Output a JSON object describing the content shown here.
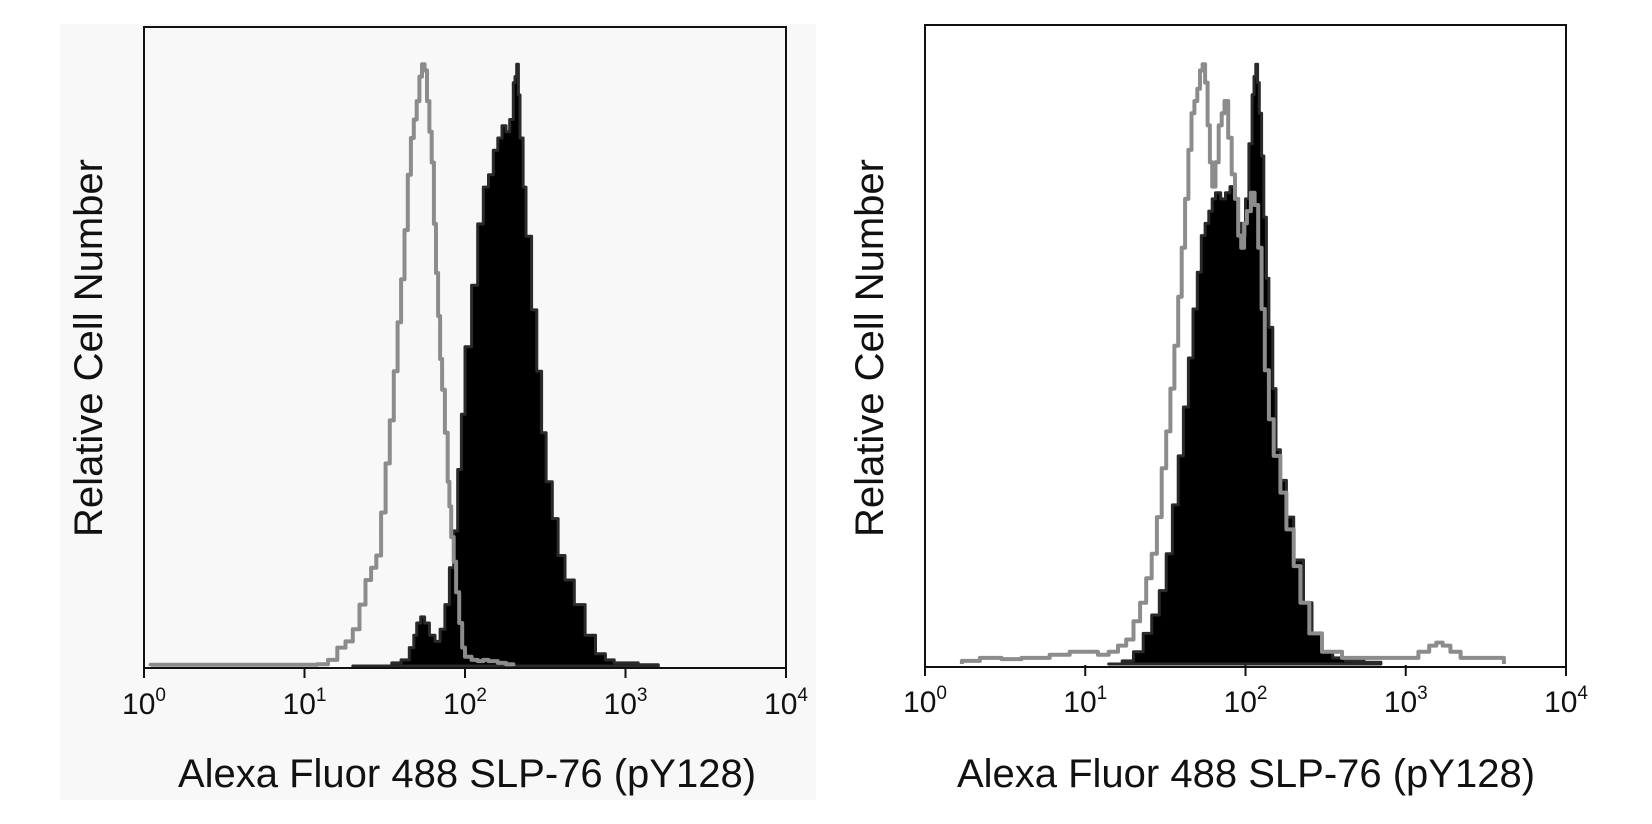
{
  "colors": {
    "panel_bg": "#f8f8f8",
    "frame": "#111111",
    "filled_series": "#000000",
    "filled_outline": "#2a2a2a",
    "open_series": "#8c8c8c"
  },
  "chart_data": [
    {
      "type": "area",
      "title": "",
      "xlabel": "Alexa Fluor 488 SLP-76 (pY128)",
      "ylabel": "Relative Cell Number",
      "xscale": "log",
      "xlim": [
        1,
        10000
      ],
      "ylim": [
        0,
        100
      ],
      "grid": false,
      "xticks": [
        {
          "value": 1,
          "base": "10",
          "exp": "0"
        },
        {
          "value": 10,
          "base": "10",
          "exp": "1"
        },
        {
          "value": 100,
          "base": "10",
          "exp": "2"
        },
        {
          "value": 1000,
          "base": "10",
          "exp": "3"
        },
        {
          "value": 10000,
          "base": "10",
          "exp": "4"
        }
      ],
      "series": [
        {
          "style": "filled",
          "points": [
            [
              20,
              0
            ],
            [
              35,
              0.5
            ],
            [
              40,
              1
            ],
            [
              45,
              3
            ],
            [
              48,
              5
            ],
            [
              50,
              7
            ],
            [
              53,
              8
            ],
            [
              56,
              7
            ],
            [
              60,
              5
            ],
            [
              65,
              4
            ],
            [
              70,
              6
            ],
            [
              75,
              10
            ],
            [
              80,
              16
            ],
            [
              85,
              22
            ],
            [
              90,
              32
            ],
            [
              95,
              41
            ],
            [
              100,
              52
            ],
            [
              110,
              62
            ],
            [
              120,
              72
            ],
            [
              130,
              78
            ],
            [
              140,
              80
            ],
            [
              150,
              84
            ],
            [
              160,
              86
            ],
            [
              170,
              88
            ],
            [
              180,
              87
            ],
            [
              190,
              89
            ],
            [
              200,
              95
            ],
            [
              205,
              96
            ],
            [
              210,
              98
            ],
            [
              215,
              93
            ],
            [
              220,
              86
            ],
            [
              230,
              78
            ],
            [
              240,
              70
            ],
            [
              260,
              58
            ],
            [
              280,
              48
            ],
            [
              300,
              38
            ],
            [
              320,
              30
            ],
            [
              350,
              24
            ],
            [
              380,
              18
            ],
            [
              420,
              14
            ],
            [
              480,
              10
            ],
            [
              560,
              5
            ],
            [
              650,
              2
            ],
            [
              750,
              1
            ],
            [
              850,
              0.5
            ],
            [
              1000,
              0.5
            ],
            [
              1200,
              0.2
            ],
            [
              1600,
              0
            ]
          ]
        },
        {
          "style": "outline",
          "points": [
            [
              1.1,
              0.2
            ],
            [
              2,
              0.2
            ],
            [
              4,
              0.2
            ],
            [
              8,
              0.2
            ],
            [
              12,
              0.3
            ],
            [
              14,
              1
            ],
            [
              16,
              3
            ],
            [
              18,
              4
            ],
            [
              20,
              6
            ],
            [
              22,
              10
            ],
            [
              24,
              14
            ],
            [
              26,
              16
            ],
            [
              28,
              18
            ],
            [
              30,
              25
            ],
            [
              32,
              33
            ],
            [
              34,
              40
            ],
            [
              36,
              48
            ],
            [
              38,
              56
            ],
            [
              40,
              63
            ],
            [
              42,
              71
            ],
            [
              44,
              80
            ],
            [
              46,
              86
            ],
            [
              48,
              89
            ],
            [
              50,
              92
            ],
            [
              52,
              96
            ],
            [
              54,
              98
            ],
            [
              56,
              97
            ],
            [
              58,
              92
            ],
            [
              60,
              87
            ],
            [
              62,
              82
            ],
            [
              64,
              72
            ],
            [
              66,
              64
            ],
            [
              68,
              57
            ],
            [
              70,
              50
            ],
            [
              72,
              45
            ],
            [
              75,
              38
            ],
            [
              78,
              30
            ],
            [
              80,
              26
            ],
            [
              82,
              21
            ],
            [
              85,
              17
            ],
            [
              88,
              12
            ],
            [
              92,
              7
            ],
            [
              96,
              3
            ],
            [
              100,
              1.5
            ],
            [
              110,
              1
            ],
            [
              120,
              0.8
            ],
            [
              130,
              1
            ],
            [
              140,
              0.8
            ],
            [
              160,
              0.5
            ],
            [
              180,
              0.3
            ],
            [
              200,
              0.2
            ]
          ]
        }
      ]
    },
    {
      "type": "area",
      "title": "",
      "xlabel": "Alexa Fluor 488 SLP-76 (pY128)",
      "ylabel": "Relative Cell Number",
      "xscale": "log",
      "xlim": [
        1,
        10000
      ],
      "ylim": [
        0,
        100
      ],
      "grid": false,
      "xticks": [
        {
          "value": 1,
          "base": "10",
          "exp": "0"
        },
        {
          "value": 10,
          "base": "10",
          "exp": "1"
        },
        {
          "value": 100,
          "base": "10",
          "exp": "2"
        },
        {
          "value": 1000,
          "base": "10",
          "exp": "3"
        },
        {
          "value": 10000,
          "base": "10",
          "exp": "4"
        }
      ],
      "series": [
        {
          "style": "filled",
          "points": [
            [
              14,
              0
            ],
            [
              17,
              0.5
            ],
            [
              20,
              2
            ],
            [
              23,
              5
            ],
            [
              26,
              8
            ],
            [
              29,
              12
            ],
            [
              32,
              18
            ],
            [
              35,
              26
            ],
            [
              38,
              34
            ],
            [
              41,
              42
            ],
            [
              44,
              50
            ],
            [
              47,
              58
            ],
            [
              50,
              64
            ],
            [
              53,
              70
            ],
            [
              56,
              72
            ],
            [
              59,
              74
            ],
            [
              62,
              76
            ],
            [
              65,
              77
            ],
            [
              70,
              76
            ],
            [
              75,
              77
            ],
            [
              80,
              78
            ],
            [
              85,
              76
            ],
            [
              90,
              72
            ],
            [
              95,
              70
            ],
            [
              100,
              76
            ],
            [
              105,
              85
            ],
            [
              110,
              93
            ],
            [
              113,
              96
            ],
            [
              116,
              98
            ],
            [
              119,
              95
            ],
            [
              122,
              90
            ],
            [
              126,
              83
            ],
            [
              130,
              73
            ],
            [
              135,
              63
            ],
            [
              140,
              55
            ],
            [
              148,
              45
            ],
            [
              155,
              35
            ],
            [
              165,
              30
            ],
            [
              180,
              24
            ],
            [
              200,
              17
            ],
            [
              230,
              10
            ],
            [
              260,
              5
            ],
            [
              300,
              2
            ],
            [
              350,
              1
            ],
            [
              420,
              0.5
            ],
            [
              550,
              0.3
            ],
            [
              700,
              0
            ]
          ]
        },
        {
          "style": "outline",
          "points": [
            [
              1.7,
              0.5
            ],
            [
              2.2,
              1
            ],
            [
              3,
              0.8
            ],
            [
              4,
              1
            ],
            [
              6,
              1.5
            ],
            [
              8,
              2
            ],
            [
              10,
              2
            ],
            [
              12,
              1.5
            ],
            [
              14,
              2
            ],
            [
              16,
              3
            ],
            [
              18,
              4
            ],
            [
              20,
              7
            ],
            [
              22,
              10
            ],
            [
              24,
              14
            ],
            [
              26,
              18
            ],
            [
              28,
              24
            ],
            [
              30,
              32
            ],
            [
              32,
              38
            ],
            [
              34,
              45
            ],
            [
              36,
              52
            ],
            [
              38,
              60
            ],
            [
              40,
              68
            ],
            [
              42,
              76
            ],
            [
              44,
              84
            ],
            [
              46,
              90
            ],
            [
              48,
              92
            ],
            [
              50,
              94
            ],
            [
              52,
              97
            ],
            [
              54,
              98
            ],
            [
              56,
              95
            ],
            [
              58,
              88
            ],
            [
              60,
              82
            ],
            [
              62,
              78
            ],
            [
              65,
              82
            ],
            [
              68,
              88
            ],
            [
              71,
              90
            ],
            [
              74,
              92
            ],
            [
              78,
              86
            ],
            [
              82,
              80
            ],
            [
              86,
              76
            ],
            [
              90,
              70
            ],
            [
              94,
              68
            ],
            [
              98,
              72
            ],
            [
              102,
              74
            ],
            [
              108,
              77
            ],
            [
              114,
              75
            ],
            [
              120,
              68
            ],
            [
              126,
              58
            ],
            [
              132,
              48
            ],
            [
              140,
              40
            ],
            [
              150,
              34
            ],
            [
              165,
              28
            ],
            [
              180,
              22
            ],
            [
              200,
              16
            ],
            [
              220,
              10
            ],
            [
              250,
              5
            ],
            [
              300,
              2
            ],
            [
              400,
              1
            ],
            [
              600,
              1
            ],
            [
              800,
              1
            ],
            [
              1000,
              1
            ],
            [
              1200,
              2
            ],
            [
              1400,
              3
            ],
            [
              1550,
              3.5
            ],
            [
              1700,
              3
            ],
            [
              1900,
              2
            ],
            [
              2200,
              1
            ],
            [
              2600,
              1
            ],
            [
              3200,
              1
            ],
            [
              4100,
              1
            ]
          ]
        }
      ]
    }
  ]
}
